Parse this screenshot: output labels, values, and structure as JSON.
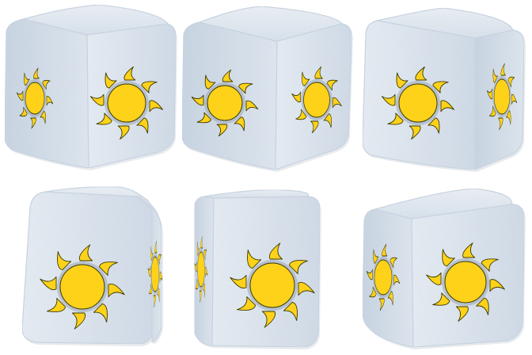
{
  "scene": {
    "background_color": "#ffffff",
    "cube_count": 6,
    "grid": {
      "rows": 2,
      "columns": 3
    },
    "cube_colors": {
      "face_light": "#eef3f8",
      "face_mid": "#d6e0ea",
      "face_dark": "#b9c7d6",
      "edge": "#c9d5e1"
    },
    "sun_colors": {
      "fill": "#ffd21a",
      "outline": "#3a3a00",
      "shadow": "#9aa6b3"
    },
    "icon": "sun-icon"
  }
}
